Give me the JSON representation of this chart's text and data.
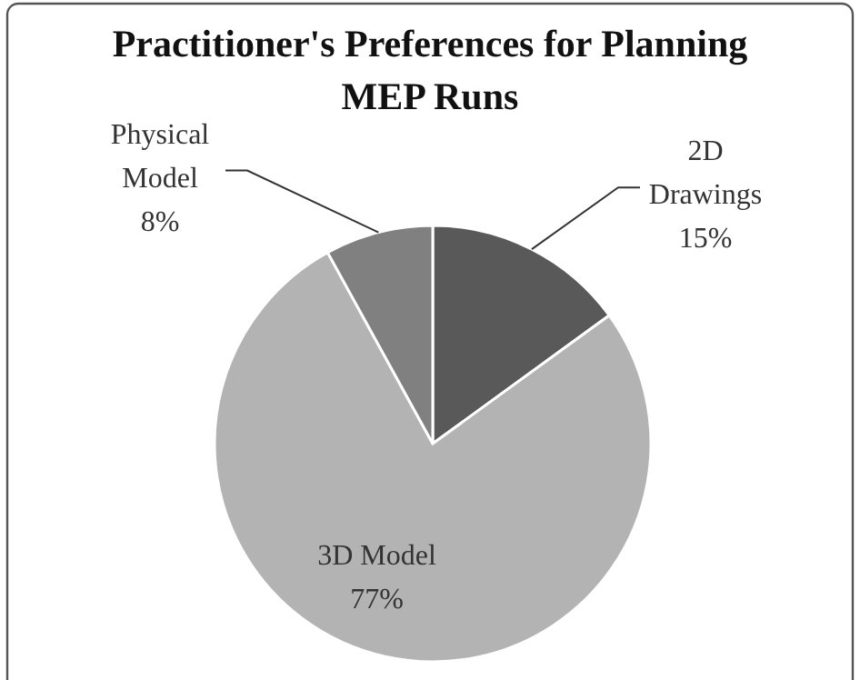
{
  "chart_data": {
    "type": "pie",
    "title": "Practitioner's Preferences for Planning MEP Runs",
    "categories": [
      "2D Drawings",
      "3D Model",
      "Physical Model"
    ],
    "values": [
      15,
      77,
      8
    ],
    "value_labels": [
      "15%",
      "77%",
      "8%"
    ],
    "colors": [
      "#595959",
      "#b3b3b3",
      "#808080"
    ]
  }
}
